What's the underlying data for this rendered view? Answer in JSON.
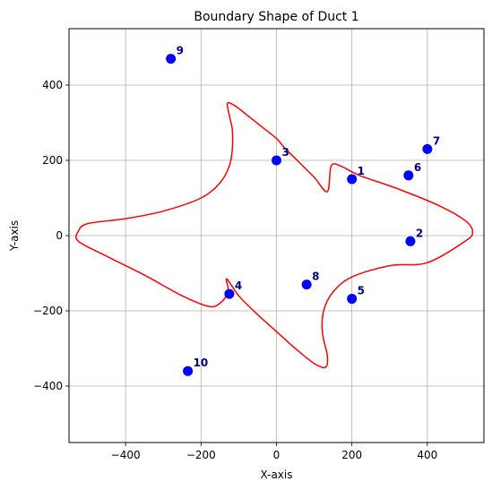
{
  "chart_data": {
    "type": "scatter",
    "title": "Boundary Shape of Duct 1",
    "xlabel": "X-axis",
    "ylabel": "Y-axis",
    "xlim": [
      -550,
      550
    ],
    "ylim": [
      -550,
      550
    ],
    "xticks": [
      -400,
      -200,
      0,
      200,
      400
    ],
    "yticks": [
      -400,
      -200,
      0,
      200,
      400
    ],
    "xtick_labels": [
      "−400",
      "−200",
      "0",
      "200",
      "400"
    ],
    "ytick_labels": [
      "−400",
      "−200",
      "0",
      "200",
      "400"
    ],
    "grid": true,
    "boundary": {
      "color": "#ff0000",
      "points": [
        [
          135,
          117
        ],
        [
          100,
          155
        ],
        [
          60,
          195
        ],
        [
          20,
          235
        ],
        [
          0,
          258
        ],
        [
          -40,
          290
        ],
        [
          -80,
          322
        ],
        [
          -110,
          345
        ],
        [
          -130,
          352
        ],
        [
          -125,
          320
        ],
        [
          -117,
          280
        ],
        [
          -117,
          230
        ],
        [
          -125,
          185
        ],
        [
          -150,
          140
        ],
        [
          -200,
          100
        ],
        [
          -300,
          65
        ],
        [
          -400,
          45
        ],
        [
          -500,
          32
        ],
        [
          -525,
          12
        ],
        [
          -525,
          -15
        ],
        [
          -450,
          -55
        ],
        [
          -350,
          -105
        ],
        [
          -250,
          -160
        ],
        [
          -180,
          -188
        ],
        [
          -150,
          -180
        ],
        [
          -128,
          -150
        ],
        [
          -132,
          -115
        ],
        [
          -100,
          -160
        ],
        [
          -50,
          -210
        ],
        [
          0,
          -255
        ],
        [
          50,
          -300
        ],
        [
          100,
          -340
        ],
        [
          130,
          -350
        ],
        [
          135,
          -320
        ],
        [
          122,
          -260
        ],
        [
          125,
          -200
        ],
        [
          150,
          -150
        ],
        [
          200,
          -110
        ],
        [
          300,
          -80
        ],
        [
          400,
          -72
        ],
        [
          500,
          -15
        ],
        [
          520,
          10
        ],
        [
          500,
          40
        ],
        [
          430,
          80
        ],
        [
          320,
          125
        ],
        [
          220,
          160
        ],
        [
          170,
          185
        ],
        [
          145,
          185
        ],
        [
          135,
          117
        ]
      ]
    },
    "points": {
      "color": "#0000ff",
      "label_color": "#00008b",
      "items": [
        {
          "label": "1",
          "x": 200,
          "y": 150
        },
        {
          "label": "2",
          "x": 355,
          "y": -15
        },
        {
          "label": "3",
          "x": 0,
          "y": 200
        },
        {
          "label": "4",
          "x": -125,
          "y": -155
        },
        {
          "label": "5",
          "x": 200,
          "y": -168
        },
        {
          "label": "6",
          "x": 350,
          "y": 160
        },
        {
          "label": "7",
          "x": 400,
          "y": 230
        },
        {
          "label": "8",
          "x": 80,
          "y": -130
        },
        {
          "label": "9",
          "x": -280,
          "y": 470
        },
        {
          "label": "10",
          "x": -235,
          "y": -360
        }
      ]
    }
  }
}
